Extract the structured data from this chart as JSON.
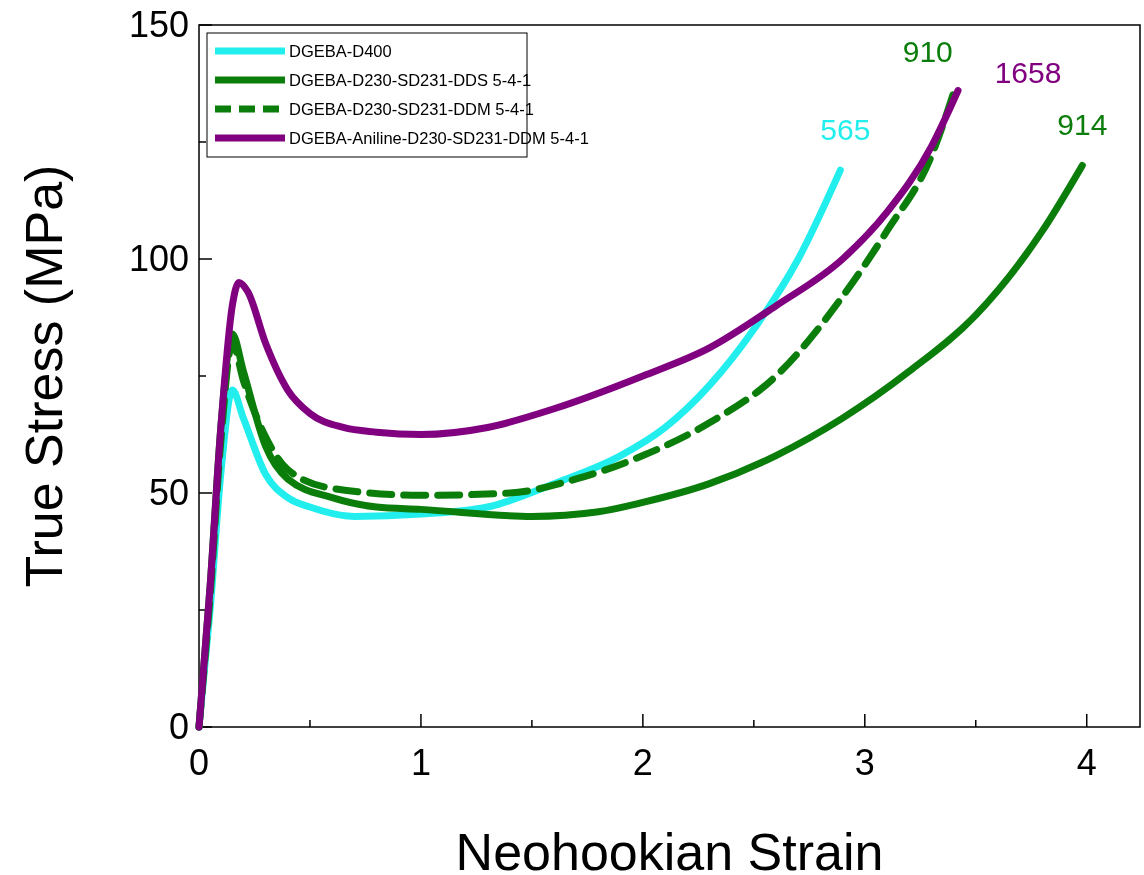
{
  "chart_data": {
    "type": "line",
    "xlabel": "Neohookian Strain",
    "ylabel": "True Stress (MPa)",
    "xlim": [
      0,
      4.24
    ],
    "ylim": [
      0,
      150
    ],
    "xticks": [
      0,
      {
        "value": 0.5,
        "label": null
      },
      1,
      {
        "value": 1.5,
        "label": null
      },
      2,
      {
        "value": 2.5,
        "label": null
      },
      3,
      {
        "value": 3.5,
        "label": null
      },
      4
    ],
    "yticks": [
      0,
      {
        "value": 25,
        "label": null
      },
      50,
      {
        "value": 75,
        "label": null
      },
      100,
      {
        "value": 125,
        "label": null
      },
      150
    ],
    "legend": "top left",
    "grid": false,
    "marker": "none",
    "series": [
      {
        "name": "DGEBA-D400",
        "color": "#22eeee",
        "line_style": "solid",
        "x": [
          0,
          0.05,
          0.1,
          0.15,
          0.2,
          0.3,
          0.4,
          0.5,
          0.7,
          1.0,
          1.3,
          1.6,
          1.9,
          2.1,
          2.3,
          2.5,
          2.7,
          2.89
        ],
        "values": [
          0,
          25,
          55,
          72,
          66,
          54,
          49,
          47,
          45,
          45.5,
          47,
          52,
          58,
          64,
          73,
          85,
          100,
          119
        ]
      },
      {
        "name": "DGEBA-D230-SD231-DDS 5-4-1",
        "color": "#0a7d0a",
        "line_style": "solid",
        "x": [
          0,
          0.05,
          0.1,
          0.15,
          0.2,
          0.3,
          0.4,
          0.6,
          0.8,
          1.0,
          1.5,
          1.8,
          2.0,
          2.3,
          2.6,
          2.9,
          3.2,
          3.5,
          3.8,
          3.98
        ],
        "values": [
          0,
          30,
          65,
          84,
          76,
          60,
          53,
          49,
          47,
          46.5,
          45,
          46,
          48,
          52,
          58,
          66,
          76,
          88,
          106,
          120
        ]
      },
      {
        "name": "DGEBA-D230-SD231-DDM 5-4-1",
        "color": "#0a7d0a",
        "line_style": "dashed",
        "x": [
          0,
          0.05,
          0.1,
          0.15,
          0.2,
          0.3,
          0.4,
          0.6,
          1.0,
          1.4,
          1.7,
          2.0,
          2.3,
          2.6,
          2.9,
          3.1,
          3.3,
          3.41
        ],
        "values": [
          0,
          28,
          62,
          82,
          74,
          62,
          55,
          51,
          49.5,
          50,
          53,
          58,
          65,
          75,
          92,
          106,
          122,
          137
        ]
      },
      {
        "name": "DGEBA-Aniline-D230-SD231-DDM 5-4-1",
        "color": "#800080",
        "line_style": "solid",
        "x": [
          0,
          0.05,
          0.1,
          0.15,
          0.18,
          0.22,
          0.3,
          0.4,
          0.5,
          0.65,
          0.8,
          1.0,
          1.3,
          1.6,
          2.0,
          2.3,
          2.6,
          2.9,
          3.1,
          3.3,
          3.42
        ],
        "values": [
          0,
          30,
          65,
          90,
          95,
          93,
          82,
          72,
          67,
          64,
          63,
          62.5,
          64,
          68,
          75,
          81,
          90,
          100,
          110,
          124,
          136
        ]
      }
    ],
    "annotations": [
      "565",
      "914",
      "910",
      "1658"
    ]
  }
}
